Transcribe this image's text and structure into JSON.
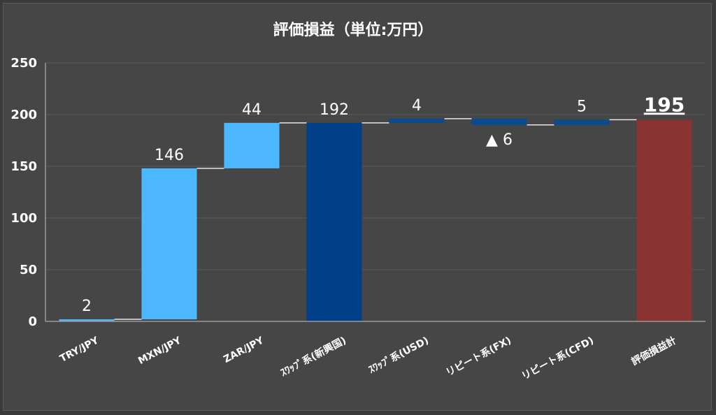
{
  "chart_data": {
    "type": "bar",
    "subtype": "waterfall",
    "title": "評価損益（単位:万円）",
    "xlabel": "",
    "ylabel": "",
    "ylim": [
      0,
      250
    ],
    "yticks": [
      0,
      50,
      100,
      150,
      200,
      250
    ],
    "grid": true,
    "legend": "none",
    "categories": [
      "TRY/JPY",
      "MXN/JPY",
      "ZAR/JPY",
      "ｽﾜｯﾌﾟ系(新興国)",
      "ｽﾜｯﾌﾟ系(USD)",
      "リピート系(FX)",
      "リピート系(CFD)",
      "評価損益計"
    ],
    "values": [
      2,
      146,
      44,
      192,
      4,
      -6,
      5,
      195
    ],
    "kinds": [
      "delta",
      "delta",
      "delta",
      "total",
      "delta",
      "delta",
      "delta",
      "total"
    ],
    "data_labels": [
      "2",
      "146",
      "44",
      "192",
      "4",
      "▲ 6",
      "5",
      "195"
    ],
    "colors": {
      "increase": "#4db8ff",
      "subtotal": "#003f87",
      "delta_dark": "#0a4a8f",
      "total": "#8b3232",
      "connector": "#e6e6e6"
    },
    "bar_colors": [
      "increase",
      "increase",
      "increase",
      "subtotal",
      "delta_dark",
      "delta_dark",
      "delta_dark",
      "total"
    ]
  }
}
